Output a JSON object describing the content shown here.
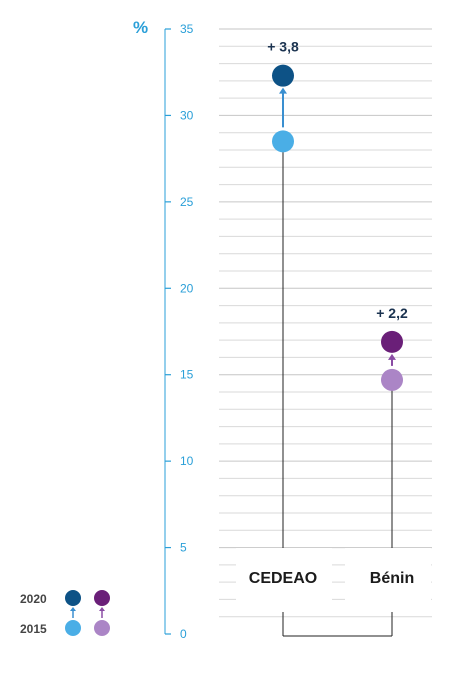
{
  "chart_data": {
    "type": "dot-arrow",
    "unit": "%",
    "ylim": [
      0,
      35
    ],
    "yticks": [
      0,
      5,
      10,
      15,
      20,
      25,
      30,
      35
    ],
    "categories": [
      "CEDEAO",
      "Bénin"
    ],
    "series": [
      {
        "name": "2015",
        "values": [
          28.5,
          14.7
        ]
      },
      {
        "name": "2020",
        "values": [
          32.3,
          16.9
        ]
      }
    ],
    "deltas": [
      "+ 3,8",
      "+ 2,2"
    ],
    "legend": {
      "labels": [
        "2020",
        "2015"
      ],
      "placement": "bottom-left"
    },
    "grid": true
  },
  "colors": {
    "axis": "#2a9fd8",
    "cedeao_2015": "#4aaee6",
    "cedeao_2020": "#0d5286",
    "cedeao_arrow": "#3a8fd0",
    "benin_2015": "#ab85c6",
    "benin_2020": "#6a1f78",
    "benin_arrow": "#8a4ca4",
    "grid": "#d9d9d9",
    "stem": "#222222"
  }
}
